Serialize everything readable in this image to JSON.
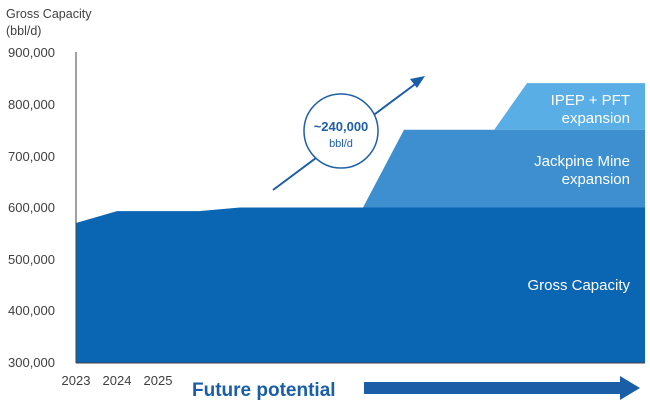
{
  "chart_data": {
    "type": "area",
    "ylabel": [
      "Gross Capacity",
      "(bbl/d)"
    ],
    "ylim": [
      300000,
      900000
    ],
    "yticks": [
      "900,000",
      "800,000",
      "700,000",
      "600,000",
      "500,000",
      "400,000",
      "300,000"
    ],
    "ytick_values": [
      900000,
      800000,
      700000,
      600000,
      500000,
      400000,
      300000
    ],
    "xticks": [
      "2023",
      "2024",
      "2025"
    ],
    "series": [
      {
        "name": "Gross Capacity",
        "color": "#0a66b3",
        "points": [
          {
            "x": 0,
            "y": 570000
          },
          {
            "x": 0.5,
            "y": 593000
          },
          {
            "x": 1.0,
            "y": 593000
          },
          {
            "x": 1.5,
            "y": 593000
          },
          {
            "x": 2.0,
            "y": 600000
          },
          {
            "x": 7.0,
            "y": 600000
          }
        ]
      },
      {
        "name": "Jackpine Mine expansion",
        "label_lines": [
          "Jackpine Mine",
          "expansion"
        ],
        "color": "#3d8fd0",
        "top": 750000,
        "ramp": [
          3.5,
          4.0
        ]
      },
      {
        "name": "IPEP + PFT expansion",
        "label_lines": [
          "IPEP + PFT",
          "expansion"
        ],
        "color": "#5aaee6",
        "top": 840000,
        "ramp": [
          5.1,
          5.5
        ]
      }
    ],
    "annotation": {
      "main": "~240,000",
      "unit": "bbl/d"
    },
    "footer_label": "Future potential",
    "colors": {
      "arrow": "#1a5ea8",
      "axis": "#404040"
    }
  }
}
